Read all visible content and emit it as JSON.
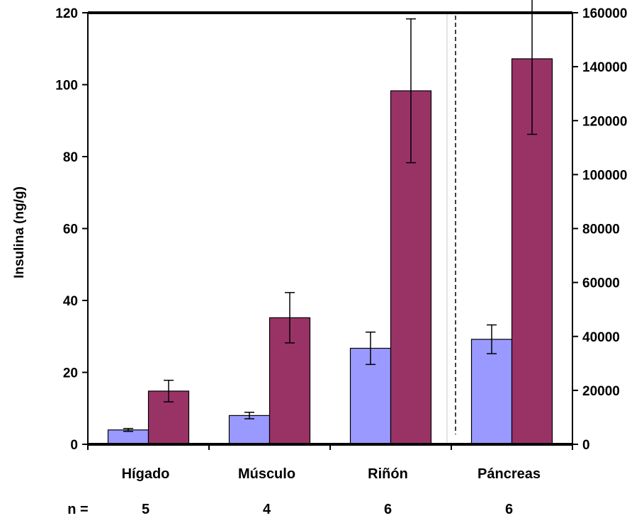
{
  "chart_data": {
    "type": "bar",
    "title": "",
    "categories": [
      "Hígado",
      "Músculo",
      "Riñón",
      "Páncreas"
    ],
    "ylabel": "Insulina (ng/g)",
    "ylim": [
      0,
      120
    ],
    "y2lim": [
      0,
      160000
    ],
    "yticks": [
      "0",
      "20",
      "40",
      "60",
      "80",
      "100",
      "120"
    ],
    "y2ticks": [
      "0",
      "20000",
      "40000",
      "60000",
      "80000",
      "100000",
      "120000",
      "140000",
      "160000"
    ],
    "separator_after_category": 2,
    "series": [
      {
        "axis": "left",
        "color": "#9999ff",
        "values": [
          4,
          8,
          26.7,
          29.2
        ],
        "errors": [
          0.4,
          0.9,
          4.5,
          4
        ]
      },
      {
        "axis": "left",
        "color": "#993366",
        "values": [
          14.8,
          35.2,
          98.3,
          107.2
        ],
        "errors": [
          3,
          7,
          20,
          21
        ]
      }
    ],
    "n_label": "n =",
    "n_values": [
      "5",
      "4",
      "6",
      "6"
    ]
  }
}
